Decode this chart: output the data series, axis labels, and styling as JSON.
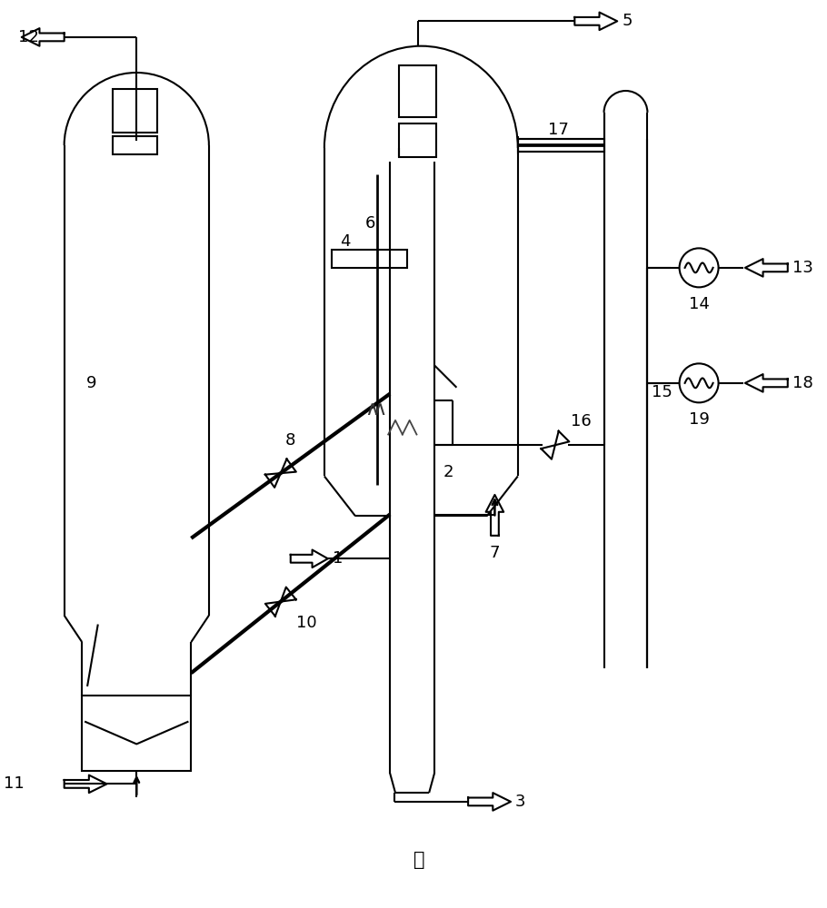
{
  "title": "图",
  "bg_color": "#ffffff",
  "line_color": "#000000",
  "lw": 1.5,
  "heavy_lw": 3.0
}
